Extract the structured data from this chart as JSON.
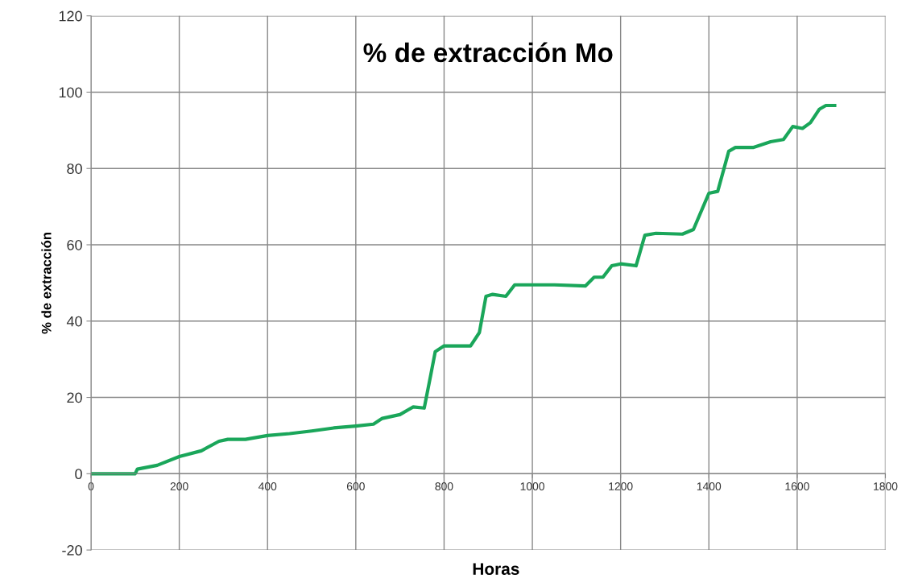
{
  "chart_data": {
    "type": "line",
    "title": "% de extracción Mo",
    "xlabel": "Horas",
    "ylabel": "% de extracción",
    "xlim": [
      0,
      1800
    ],
    "xticks": [
      0,
      200,
      400,
      600,
      800,
      1000,
      1200,
      1400,
      1600,
      1800
    ],
    "ylim": [
      -20,
      120
    ],
    "yticks": [
      -20,
      0,
      20,
      40,
      60,
      80,
      100,
      120
    ],
    "grid": true,
    "legend": false,
    "marker": "none",
    "line_style": "solid",
    "series": [
      {
        "color": "#1aa65a",
        "x": [
          0,
          100,
          105,
          150,
          200,
          250,
          290,
          310,
          350,
          400,
          450,
          500,
          550,
          600,
          640,
          660,
          700,
          730,
          755,
          770,
          780,
          800,
          860,
          880,
          895,
          910,
          940,
          960,
          1000,
          1050,
          1120,
          1140,
          1160,
          1180,
          1200,
          1235,
          1255,
          1280,
          1340,
          1365,
          1400,
          1420,
          1445,
          1460,
          1500,
          1540,
          1569,
          1590,
          1612,
          1630,
          1650,
          1665,
          1685
        ],
        "values": [
          0,
          0,
          1.2,
          2.2,
          4.5,
          6,
          8.5,
          9,
          9,
          10,
          10.5,
          11.2,
          12,
          12.5,
          13,
          14.5,
          15.5,
          17.5,
          17.2,
          26,
          32,
          33.5,
          33.5,
          37,
          46.5,
          47,
          46.5,
          49.5,
          49.5,
          49.5,
          49.2,
          51.5,
          51.5,
          54.5,
          55,
          54.5,
          62.5,
          63,
          62.8,
          64,
          73.5,
          74,
          84.5,
          85.5,
          85.5,
          87,
          87.6,
          91,
          90.5,
          92,
          95.5,
          96.5,
          96.5
        ]
      }
    ]
  }
}
